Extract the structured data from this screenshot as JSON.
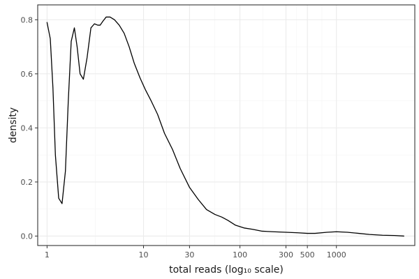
{
  "chart_data": {
    "type": "line",
    "title": "",
    "xlabel": "total reads (log₁₀ scale)",
    "ylabel": "density",
    "x_scale": "log10",
    "xlim": [
      0.8,
      6500
    ],
    "ylim": [
      -0.035,
      0.855
    ],
    "x_ticks": [
      1,
      10,
      30,
      100,
      300,
      500,
      1000
    ],
    "x_tick_labels": [
      "1",
      "10",
      "30",
      "100",
      "300",
      "500",
      "1000"
    ],
    "y_ticks": [
      0.0,
      0.2,
      0.4,
      0.6,
      0.8
    ],
    "y_tick_labels": [
      "0.0",
      "0.2",
      "0.4",
      "0.6",
      "0.8"
    ],
    "grid": true,
    "line_color": "#000000",
    "series": [
      {
        "x": [
          1,
          1.08,
          1.15,
          1.22,
          1.32,
          1.43,
          1.55,
          1.66,
          1.78,
          1.92,
          2.05,
          2.2,
          2.38,
          2.6,
          2.85,
          3.1,
          3.35,
          3.55,
          3.8,
          4.1,
          4.5,
          5.0,
          5.6,
          6.3,
          7.1,
          8.0,
          9.2,
          10.5,
          12.0,
          14.0,
          16.5,
          20,
          24,
          30,
          37,
          45,
          55,
          65,
          75,
          90,
          110,
          135,
          170,
          220,
          300,
          400,
          500,
          600,
          800,
          1000,
          1300,
          1700,
          2200,
          3000,
          4000,
          5000
        ],
        "y": [
          0.79,
          0.73,
          0.55,
          0.3,
          0.14,
          0.12,
          0.24,
          0.5,
          0.72,
          0.77,
          0.7,
          0.6,
          0.58,
          0.66,
          0.77,
          0.785,
          0.78,
          0.78,
          0.795,
          0.81,
          0.81,
          0.8,
          0.78,
          0.75,
          0.7,
          0.64,
          0.585,
          0.54,
          0.5,
          0.45,
          0.38,
          0.32,
          0.25,
          0.18,
          0.135,
          0.098,
          0.08,
          0.07,
          0.058,
          0.04,
          0.03,
          0.025,
          0.018,
          0.016,
          0.014,
          0.012,
          0.01,
          0.01,
          0.014,
          0.016,
          0.014,
          0.01,
          0.006,
          0.003,
          0.002,
          0.0
        ]
      }
    ]
  }
}
